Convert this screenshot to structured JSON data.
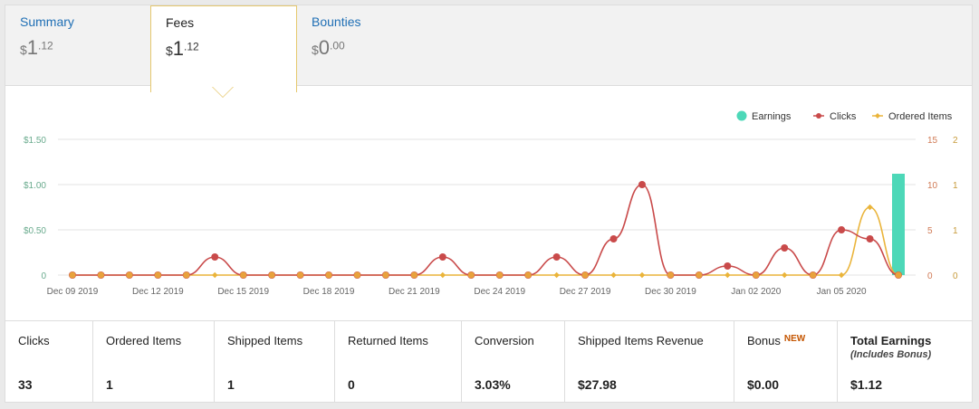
{
  "tabs": [
    {
      "label": "Summary",
      "currency": "$",
      "whole": "1",
      "cents": ".12"
    },
    {
      "label": "Fees",
      "currency": "$",
      "whole": "1",
      "cents": ".12"
    },
    {
      "label": "Bounties",
      "currency": "$",
      "whole": "0",
      "cents": ".00"
    }
  ],
  "legend": [
    {
      "label": "Earnings",
      "color": "#4dd8b8"
    },
    {
      "label": "Clicks",
      "color": "#c94a4a"
    },
    {
      "label": "Ordered Items",
      "color": "#eab43a"
    }
  ],
  "chart_data": {
    "type": "line",
    "x": [
      "Dec 09 2019",
      "Dec 10 2019",
      "Dec 11 2019",
      "Dec 12 2019",
      "Dec 13 2019",
      "Dec 14 2019",
      "Dec 15 2019",
      "Dec 16 2019",
      "Dec 17 2019",
      "Dec 18 2019",
      "Dec 19 2019",
      "Dec 20 2019",
      "Dec 21 2019",
      "Dec 22 2019",
      "Dec 23 2019",
      "Dec 24 2019",
      "Dec 25 2019",
      "Dec 26 2019",
      "Dec 27 2019",
      "Dec 28 2019",
      "Dec 29 2019",
      "Dec 30 2019",
      "Dec 31 2019",
      "Jan 01 2020",
      "Jan 02 2020",
      "Jan 03 2020",
      "Jan 04 2020",
      "Jan 05 2020",
      "Jan 06 2020",
      "Jan 07 2020"
    ],
    "x_tick_labels": [
      "Dec 09 2019",
      "Dec 12 2019",
      "Dec 15 2019",
      "Dec 18 2019",
      "Dec 21 2019",
      "Dec 24 2019",
      "Dec 27 2019",
      "Dec 30 2019",
      "Jan 02 2020",
      "Jan 05 2020"
    ],
    "series": [
      {
        "name": "Earnings",
        "type": "bar",
        "axis": "left",
        "values": [
          0,
          0,
          0,
          0,
          0,
          0,
          0,
          0,
          0,
          0,
          0,
          0,
          0,
          0,
          0,
          0,
          0,
          0,
          0,
          0,
          0,
          0,
          0,
          0,
          0,
          0,
          0,
          0,
          0,
          1.12
        ]
      },
      {
        "name": "Clicks",
        "type": "line",
        "axis": "right1",
        "values": [
          0,
          0,
          0,
          0,
          0,
          2,
          0,
          0,
          0,
          0,
          0,
          0,
          0,
          2,
          0,
          0,
          0,
          2,
          0,
          4,
          10,
          0,
          0,
          1,
          0,
          3,
          0,
          5,
          4,
          0
        ]
      },
      {
        "name": "Ordered Items",
        "type": "line",
        "axis": "right2",
        "values": [
          0,
          0,
          0,
          0,
          0,
          0,
          0,
          0,
          0,
          0,
          0,
          0,
          0,
          0,
          0,
          0,
          0,
          0,
          0,
          0,
          0,
          0,
          0,
          0,
          0,
          0,
          0,
          0,
          1,
          0
        ]
      }
    ],
    "y_left": {
      "ticks": [
        "0",
        "$0.50",
        "$1.00",
        "$1.50"
      ],
      "lim": [
        0,
        1.5
      ]
    },
    "y_right1": {
      "ticks": [
        "0",
        "5",
        "10",
        "15"
      ],
      "lim": [
        0,
        15
      ]
    },
    "y_right2": {
      "ticks": [
        "0",
        "1",
        "1",
        "2"
      ],
      "lim": [
        0,
        2
      ]
    },
    "grid": true,
    "legend_position": "top-right"
  },
  "stats": [
    {
      "label": "Clicks",
      "value": "33"
    },
    {
      "label": "Ordered Items",
      "value": "1"
    },
    {
      "label": "Shipped Items",
      "value": "1"
    },
    {
      "label": "Returned Items",
      "value": "0"
    },
    {
      "label": "Conversion",
      "value": "3.03%"
    },
    {
      "label": "Shipped Items Revenue",
      "value": "$27.98"
    },
    {
      "label": "Bonus",
      "badge": "NEW",
      "value": "$0.00"
    },
    {
      "label": "Total Earnings",
      "sublabel": "(Includes Bonus)",
      "value": "$1.12"
    }
  ]
}
